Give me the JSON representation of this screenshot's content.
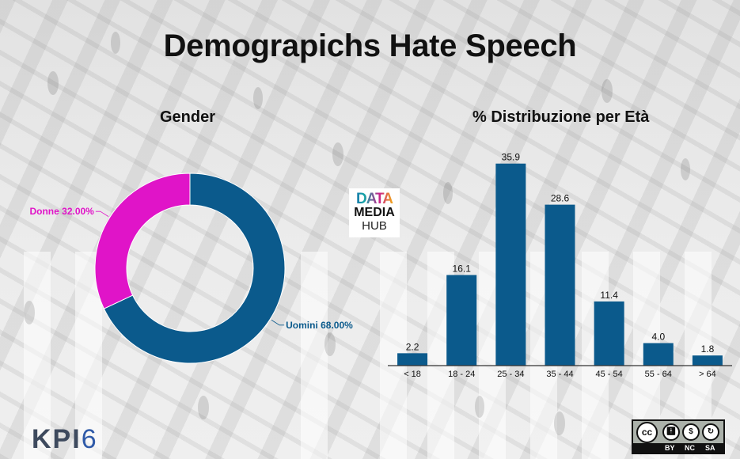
{
  "title": "Demograpichs Hate Speech",
  "gender_section": {
    "title": "Gender"
  },
  "age_section": {
    "title": "% Distribuzione per Età"
  },
  "logos": {
    "datamediahub": {
      "line1": "DATA",
      "line2": "MEDIA",
      "line3": "HUB"
    },
    "kpi6": {
      "text": "KPI",
      "six": "6"
    },
    "cc_license": {
      "main": "cc",
      "labels": [
        "BY",
        "NC",
        "SA"
      ]
    }
  },
  "chart_data": [
    {
      "type": "pie",
      "subtype": "donut",
      "title": "Gender",
      "labels": [
        "Uomini",
        "Donne"
      ],
      "values": [
        68.0,
        32.0
      ],
      "value_format": "percent_2dp",
      "display_labels": [
        "Uomini 68.00%",
        "Donne 32.00%"
      ],
      "colors": [
        "#0b5a8c",
        "#e014c8"
      ],
      "start": "top",
      "direction": "clockwise"
    },
    {
      "type": "bar",
      "title": "% Distribuzione per Età",
      "categories": [
        "< 18",
        "18 - 24",
        "25 - 34",
        "35 - 44",
        "45 - 54",
        "55 - 64",
        "> 64"
      ],
      "values": [
        2.2,
        16.1,
        35.9,
        28.6,
        11.4,
        4.0,
        1.8
      ],
      "value_labels": [
        "2.2",
        "16.1",
        "35.9",
        "28.6",
        "11.4",
        "4.0",
        "1.8"
      ],
      "xlabel": "",
      "ylabel": "",
      "ylim": [
        0,
        36
      ],
      "grid": false,
      "color": "#0b5a8c"
    }
  ]
}
